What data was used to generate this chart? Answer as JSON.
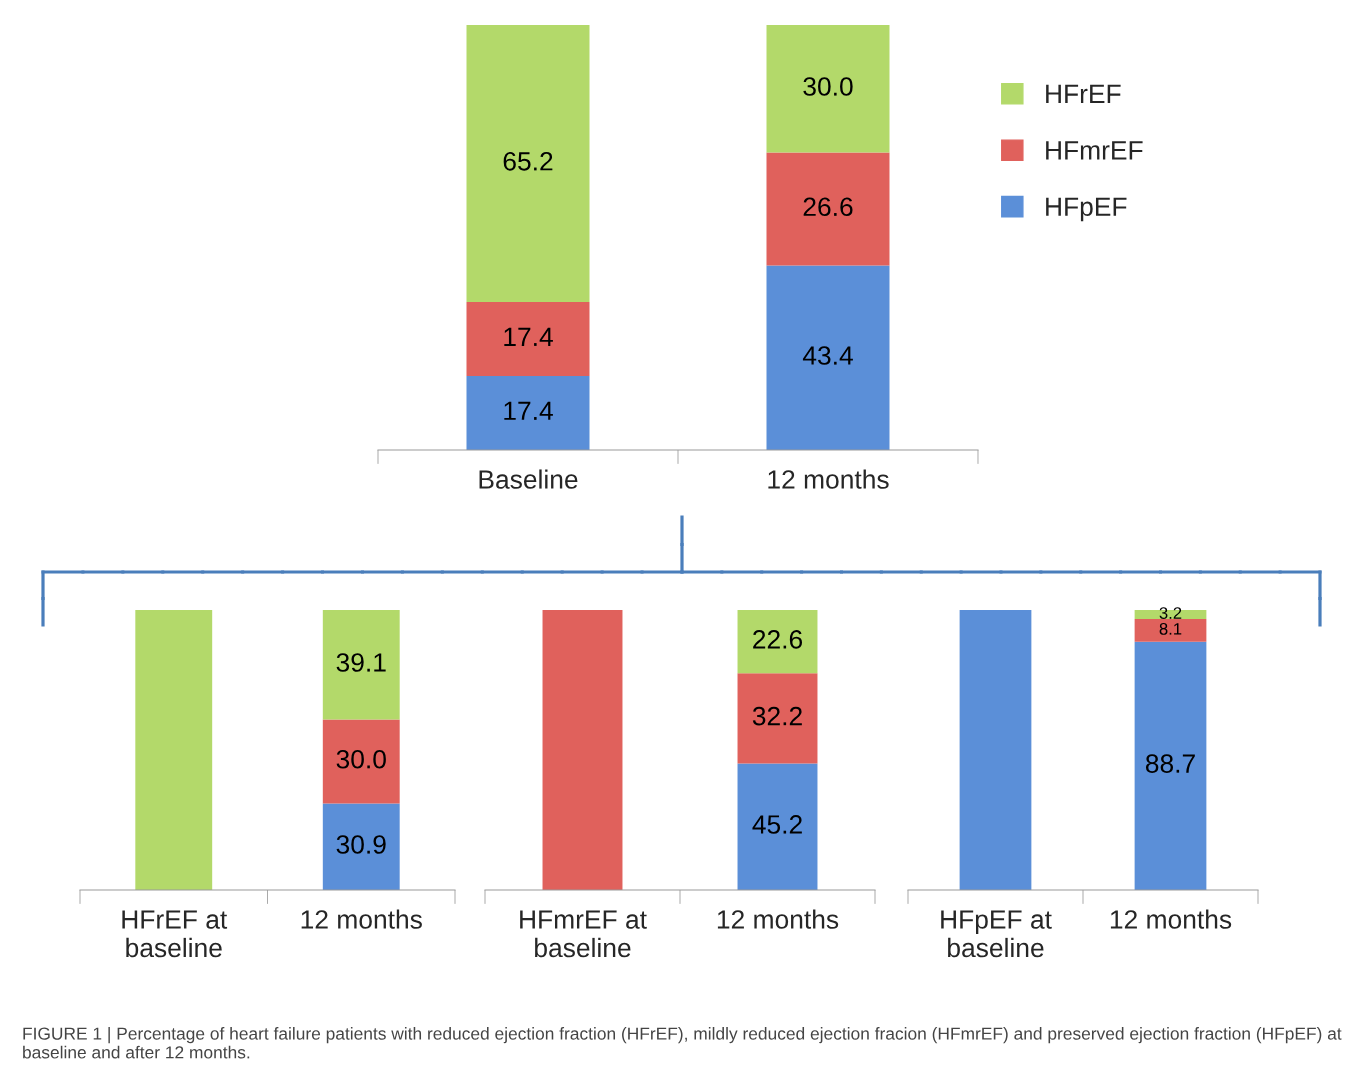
{
  "chart_data": [
    {
      "type": "bar",
      "stacked": true,
      "categories": [
        "Baseline",
        "12 months"
      ],
      "legend": "right",
      "series": [
        {
          "name": "HFpEF",
          "color": "#5b8fd8",
          "values": [
            17.4,
            43.4
          ],
          "value_labels": [
            "17.4",
            "43.4"
          ]
        },
        {
          "name": "HFmrEF",
          "color": "#e0615c",
          "values": [
            17.4,
            26.6
          ],
          "value_labels": [
            "17.4",
            "26.6"
          ]
        },
        {
          "name": "HFrEF",
          "color": "#b3d96a",
          "values": [
            65.2,
            30.0
          ],
          "value_labels": [
            "65.2",
            "30.0"
          ]
        }
      ]
    },
    {
      "type": "bar",
      "stacked": true,
      "categories": [
        "HFrEF at\nbaseline",
        "12 months"
      ],
      "legend": false,
      "series": [
        {
          "color": "#5b8fd8",
          "values": [
            0,
            30.9
          ],
          "value_labels": [
            null,
            "30.9"
          ]
        },
        {
          "color": "#e0615c",
          "values": [
            0,
            30.0
          ],
          "value_labels": [
            null,
            "30.0"
          ]
        },
        {
          "color": "#b3d96a",
          "values": [
            100,
            39.1
          ],
          "value_labels": [
            null,
            "39.1"
          ]
        }
      ]
    },
    {
      "type": "bar",
      "stacked": true,
      "categories": [
        "HFmrEF at\nbaseline",
        "12 months"
      ],
      "legend": false,
      "series": [
        {
          "color": "#5b8fd8",
          "values": [
            0,
            45.2
          ],
          "value_labels": [
            null,
            "45.2"
          ]
        },
        {
          "color": "#e0615c",
          "values": [
            100,
            32.2
          ],
          "value_labels": [
            null,
            "32.2"
          ]
        },
        {
          "color": "#b3d96a",
          "values": [
            0,
            22.6
          ],
          "value_labels": [
            null,
            "22.6"
          ]
        }
      ]
    },
    {
      "type": "bar",
      "stacked": true,
      "categories": [
        "HFpEF at\nbaseline",
        "12 months"
      ],
      "legend": false,
      "annotations": [
        "FIGURE 1 | Percentage of heart failure patients with reduced ejection fraction (HFrEF), mildly reduced ejection fracion (HFmrEF) and preserved ejection fraction (HFpEF) at baseline and after 12 months."
      ],
      "series": [
        {
          "color": "#5b8fd8",
          "values": [
            100,
            88.7
          ],
          "value_labels": [
            null,
            "88.7"
          ]
        },
        {
          "color": "#e0615c",
          "values": [
            0,
            8.1
          ],
          "value_labels": [
            null,
            "8.1"
          ]
        },
        {
          "color": "#b3d96a",
          "values": [
            0,
            3.2
          ],
          "value_labels": [
            null,
            "3.2"
          ]
        }
      ]
    }
  ]
}
